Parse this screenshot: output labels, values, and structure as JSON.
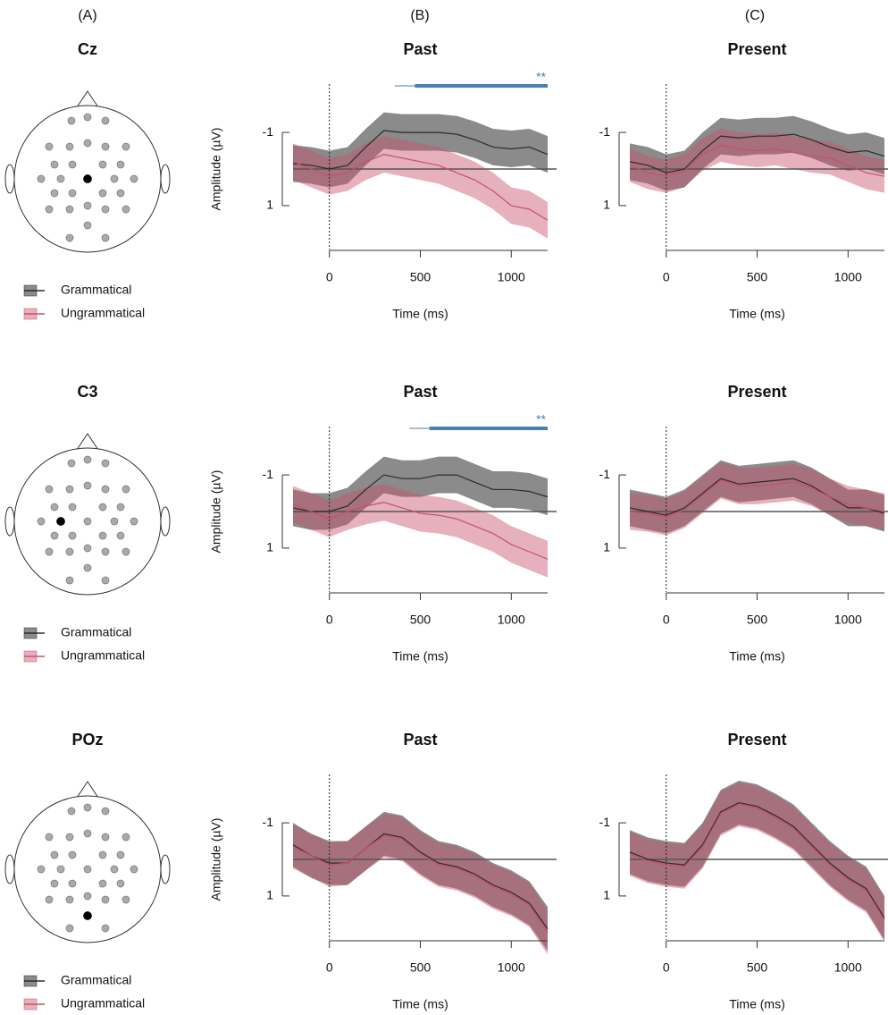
{
  "column_labels": [
    "(A)",
    "(B)",
    "(C)"
  ],
  "electrodes": [
    "Cz",
    "C3",
    "POz"
  ],
  "chart_data": [
    {
      "type": "line",
      "title": "Past",
      "xlabel": "Time (ms)",
      "ylabel": "Amplitude (µV)",
      "x": [
        -200,
        -100,
        0,
        100,
        200,
        300,
        400,
        500,
        600,
        700,
        800,
        900,
        1000,
        1100,
        1200
      ],
      "xlim": [
        -200,
        1200
      ],
      "xticks": [
        0,
        500,
        1000
      ],
      "ylim": [
        2.2,
        -2.2
      ],
      "yticks": [
        -1,
        1
      ],
      "significance": {
        "label": "**",
        "color": "#4a7fb0",
        "onset": 360,
        "start": 470,
        "end": 1200
      },
      "series": [
        {
          "name": "Grammatical",
          "color": "#2b2b2b",
          "error": 0.5,
          "values": [
            -0.15,
            -0.1,
            0.0,
            -0.1,
            -0.6,
            -1.05,
            -1.0,
            -1.0,
            -1.0,
            -0.95,
            -0.8,
            -0.6,
            -0.55,
            -0.6,
            -0.4
          ]
        },
        {
          "name": "Ungrammatical",
          "color": "#c8506a",
          "error": 0.5,
          "values": [
            -0.2,
            0.0,
            0.2,
            0.1,
            -0.2,
            -0.4,
            -0.3,
            -0.2,
            -0.1,
            0.1,
            0.3,
            0.6,
            1.0,
            1.1,
            1.4
          ]
        }
      ]
    },
    {
      "type": "line",
      "title": "Present",
      "xlabel": "Time (ms)",
      "x": [
        -200,
        -100,
        0,
        100,
        200,
        300,
        400,
        500,
        600,
        700,
        800,
        900,
        1000,
        1100,
        1200
      ],
      "xlim": [
        -200,
        1200
      ],
      "xticks": [
        0,
        500,
        1000
      ],
      "ylim": [
        2.2,
        -2.2
      ],
      "yticks": [
        -1,
        1
      ],
      "series": [
        {
          "name": "Grammatical",
          "color": "#2b2b2b",
          "error": 0.5,
          "values": [
            -0.2,
            -0.1,
            0.1,
            0.0,
            -0.5,
            -0.9,
            -0.85,
            -0.9,
            -0.9,
            -0.95,
            -0.8,
            -0.6,
            -0.45,
            -0.5,
            -0.35
          ]
        },
        {
          "name": "Ungrammatical",
          "color": "#c8506a",
          "error": 0.45,
          "values": [
            -0.1,
            0.1,
            0.2,
            0.05,
            -0.4,
            -0.65,
            -0.55,
            -0.5,
            -0.55,
            -0.45,
            -0.35,
            -0.3,
            -0.1,
            0.1,
            0.2
          ]
        }
      ]
    },
    {
      "type": "line",
      "title": "Past",
      "xlabel": "Time (ms)",
      "ylabel": "Amplitude (µV)",
      "x": [
        -200,
        -100,
        0,
        100,
        200,
        300,
        400,
        500,
        600,
        700,
        800,
        900,
        1000,
        1100,
        1200
      ],
      "xlim": [
        -200,
        1200
      ],
      "xticks": [
        0,
        500,
        1000
      ],
      "ylim": [
        2.2,
        -2.2
      ],
      "yticks": [
        -1,
        1
      ],
      "significance": {
        "label": "**",
        "color": "#4a7fb0",
        "onset": 440,
        "start": 550,
        "end": 1200
      },
      "series": [
        {
          "name": "Grammatical",
          "color": "#2b2b2b",
          "error": 0.5,
          "values": [
            -0.1,
            0.0,
            0.0,
            -0.15,
            -0.6,
            -1.0,
            -0.9,
            -0.9,
            -1.0,
            -1.0,
            -0.8,
            -0.6,
            -0.6,
            -0.55,
            -0.4
          ]
        },
        {
          "name": "Ungrammatical",
          "color": "#c8506a",
          "error": 0.5,
          "values": [
            -0.2,
            0.0,
            0.2,
            0.0,
            -0.15,
            -0.25,
            -0.1,
            0.05,
            0.1,
            0.2,
            0.4,
            0.6,
            0.9,
            1.1,
            1.3
          ]
        }
      ]
    },
    {
      "type": "line",
      "title": "Present",
      "xlabel": "Time (ms)",
      "x": [
        -200,
        -100,
        0,
        100,
        200,
        300,
        400,
        500,
        600,
        700,
        800,
        900,
        1000,
        1100,
        1200
      ],
      "xlim": [
        -200,
        1200
      ],
      "xticks": [
        0,
        500,
        1000
      ],
      "ylim": [
        2.2,
        -2.2
      ],
      "yticks": [
        -1,
        1
      ],
      "series": [
        {
          "name": "Grammatical",
          "color": "#2b2b2b",
          "error": 0.5,
          "values": [
            -0.1,
            0.0,
            0.1,
            -0.1,
            -0.5,
            -0.9,
            -0.75,
            -0.8,
            -0.85,
            -0.9,
            -0.7,
            -0.4,
            -0.1,
            -0.1,
            0.05
          ]
        },
        {
          "name": "Ungrammatical",
          "color": "#c8506a",
          "error": 0.5,
          "values": [
            0.0,
            0.05,
            0.15,
            -0.05,
            -0.45,
            -0.85,
            -0.7,
            -0.7,
            -0.75,
            -0.8,
            -0.65,
            -0.4,
            -0.2,
            -0.1,
            0.0
          ]
        }
      ]
    },
    {
      "type": "line",
      "title": "Past",
      "xlabel": "Time (ms)",
      "ylabel": "Amplitude (µV)",
      "x": [
        -200,
        -100,
        0,
        100,
        200,
        300,
        400,
        500,
        600,
        700,
        800,
        900,
        1000,
        1100,
        1200
      ],
      "xlim": [
        -200,
        1200
      ],
      "xticks": [
        0,
        500,
        1000
      ],
      "ylim": [
        2.2,
        -2.2
      ],
      "yticks": [
        -1,
        1
      ],
      "series": [
        {
          "name": "Grammatical",
          "color": "#2b2b2b",
          "error": 0.6,
          "values": [
            -0.4,
            -0.1,
            0.1,
            0.1,
            -0.3,
            -0.7,
            -0.6,
            -0.2,
            0.1,
            0.2,
            0.4,
            0.7,
            0.9,
            1.2,
            1.9
          ]
        },
        {
          "name": "Ungrammatical",
          "color": "#c8506a",
          "error": 0.6,
          "values": [
            -0.35,
            -0.1,
            0.15,
            0.1,
            -0.3,
            -0.65,
            -0.55,
            -0.15,
            0.15,
            0.25,
            0.45,
            0.75,
            0.95,
            1.25,
            2.0
          ]
        }
      ]
    },
    {
      "type": "line",
      "title": "Present",
      "xlabel": "Time (ms)",
      "x": [
        -200,
        -100,
        0,
        100,
        200,
        300,
        400,
        500,
        600,
        700,
        800,
        900,
        1000,
        1100,
        1200
      ],
      "xlim": [
        -200,
        1200
      ],
      "xticks": [
        0,
        500,
        1000
      ],
      "ylim": [
        2.2,
        -2.2
      ],
      "yticks": [
        -1,
        1
      ],
      "series": [
        {
          "name": "Grammatical",
          "color": "#2b2b2b",
          "error": 0.6,
          "values": [
            -0.2,
            0.0,
            0.1,
            0.15,
            -0.4,
            -1.3,
            -1.55,
            -1.45,
            -1.2,
            -0.9,
            -0.4,
            0.1,
            0.5,
            0.8,
            1.6
          ]
        },
        {
          "name": "Ungrammatical",
          "color": "#c8506a",
          "error": 0.6,
          "values": [
            -0.15,
            0.05,
            0.15,
            0.2,
            -0.35,
            -1.25,
            -1.5,
            -1.4,
            -1.15,
            -0.85,
            -0.35,
            0.15,
            0.55,
            0.85,
            1.65
          ]
        }
      ]
    }
  ]
}
